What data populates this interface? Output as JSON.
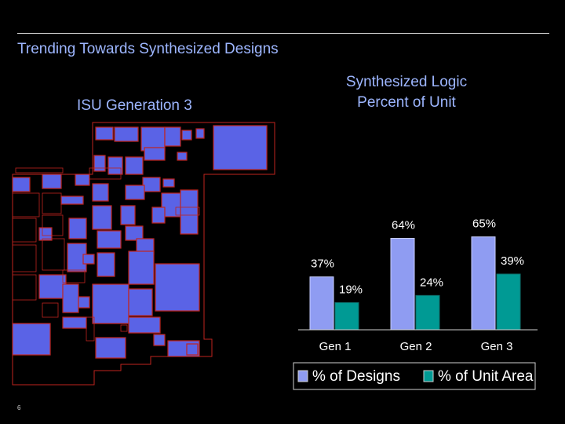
{
  "slide": {
    "title": "Trending Towards Synthesized Designs",
    "floorplan_title": "ISU Generation 3",
    "slide_number": "6"
  },
  "colors": {
    "background": "#000000",
    "title_text": "#9db6ff",
    "block_fill": "#5a63e6",
    "block_outline": "#c0241e",
    "designs_bar": "#8f9cf2",
    "unit_area_bar": "#009a94"
  },
  "floorplan_image": {
    "icon": "chip-floorplan-icon"
  },
  "chart_data": {
    "type": "bar",
    "title_lines": [
      "Synthesized Logic",
      "Percent of Unit"
    ],
    "categories": [
      "Gen 1",
      "Gen 2",
      "Gen 3"
    ],
    "series": [
      {
        "name": "% of Designs",
        "values": [
          37,
          64,
          65
        ],
        "labels": [
          "37%",
          "64%",
          "65%"
        ],
        "color": "#8f9cf2"
      },
      {
        "name": "% of Unit Area",
        "values": [
          19,
          24,
          39
        ],
        "labels": [
          "19%",
          "24%",
          "39%"
        ],
        "color": "#009a94"
      }
    ],
    "ylim": [
      0,
      100
    ],
    "grid": false,
    "legend": "bottom"
  }
}
